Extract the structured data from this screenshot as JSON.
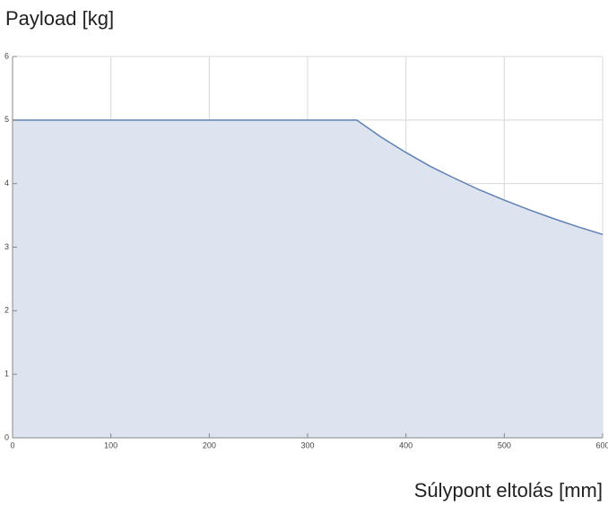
{
  "chart_data": {
    "type": "area",
    "y_label": "Payload [kg]",
    "x_label": "Súlypont eltolás [mm]",
    "x": [
      0,
      350,
      375,
      400,
      425,
      450,
      475,
      500,
      525,
      550,
      575,
      600
    ],
    "series": [
      {
        "color": "#5e81b5",
        "fill": "#dde3ef",
        "values": [
          5,
          5,
          4.73,
          4.49,
          4.27,
          4.08,
          3.9,
          3.74,
          3.59,
          3.45,
          3.32,
          3.2
        ]
      }
    ],
    "xlim": [
      0,
      600
    ],
    "xticks": [
      0,
      100,
      200,
      300,
      400,
      500,
      600
    ],
    "ylim": [
      0,
      6
    ],
    "yticks": [
      0,
      1,
      2,
      3,
      4,
      5,
      6
    ],
    "grid": true
  }
}
